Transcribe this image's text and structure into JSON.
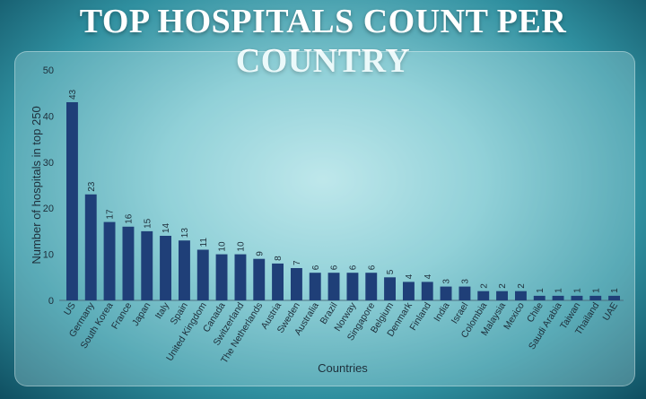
{
  "title": "TOP HOSPITALS COUNT PER COUNTRY",
  "chart_data": {
    "type": "bar",
    "categories": [
      "US",
      "Germany",
      "South Korea",
      "France",
      "Japan",
      "Italy",
      "Spain",
      "United Kingdom",
      "Canada",
      "Switzerland",
      "The Netherlands",
      "Austria",
      "Sweden",
      "Australia",
      "Brazil",
      "Norway",
      "Singapore",
      "Belgium",
      "Denmark",
      "Finland",
      "India",
      "Israel",
      "Colombia",
      "Malaysia",
      "Mexico",
      "Chile",
      "Saudi Arabia",
      "Taiwan",
      "Thailand",
      "UAE"
    ],
    "values": [
      43,
      23,
      17,
      16,
      15,
      14,
      13,
      11,
      10,
      10,
      9,
      8,
      7,
      6,
      6,
      6,
      6,
      5,
      4,
      4,
      3,
      3,
      2,
      2,
      2,
      1,
      1,
      1,
      1,
      1
    ],
    "xlabel": "Countries",
    "ylabel": "Number of hospitals in top 250",
    "ylim": [
      0,
      50
    ],
    "yticks": [
      0,
      10,
      20,
      30,
      40,
      50
    ],
    "bar_color": "#1f3f78",
    "grid": false,
    "legend": "none"
  }
}
